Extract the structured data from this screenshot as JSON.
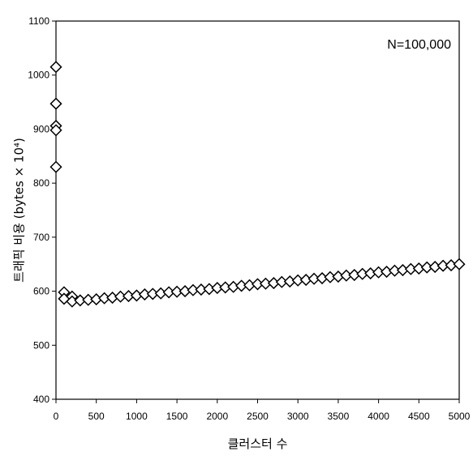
{
  "chart_data": {
    "type": "scatter",
    "title": "",
    "xlabel": "클러스터 수",
    "ylabel": "트래픽 비용 (bytes × 10⁴)",
    "annotation": "N=100,000",
    "xlim": [
      0,
      5000
    ],
    "ylim": [
      400,
      1100
    ],
    "xticks": [
      0,
      500,
      1000,
      1500,
      2000,
      2500,
      3000,
      3500,
      4000,
      4500,
      5000
    ],
    "yticks": [
      400,
      500,
      600,
      700,
      800,
      900,
      1000,
      1100
    ],
    "grid": false,
    "marker": "diamond",
    "series": [
      {
        "x": [
          0,
          0,
          0,
          0,
          0,
          100,
          100,
          200,
          200,
          300,
          400,
          500,
          600,
          700,
          800,
          900,
          1000,
          1100,
          1200,
          1300,
          1400,
          1500,
          1600,
          1700,
          1800,
          1900,
          2000,
          2100,
          2200,
          2300,
          2400,
          2500,
          2600,
          2700,
          2800,
          2900,
          3000,
          3100,
          3200,
          3300,
          3400,
          3500,
          3600,
          3700,
          3800,
          3900,
          4000,
          4100,
          4200,
          4300,
          4400,
          4500,
          4600,
          4700,
          4800,
          4900,
          5000
        ],
        "y": [
          1015,
          947,
          906,
          898,
          830,
          598,
          586,
          590,
          581,
          583,
          584,
          585,
          587,
          588,
          590,
          591,
          592,
          594,
          595,
          596,
          598,
          599,
          600,
          602,
          603,
          604,
          606,
          607,
          608,
          610,
          611,
          613,
          614,
          615,
          617,
          618,
          620,
          621,
          623,
          624,
          626,
          627,
          629,
          630,
          632,
          633,
          635,
          636,
          638,
          639,
          641,
          642,
          644,
          645,
          647,
          648,
          650
        ]
      }
    ]
  }
}
